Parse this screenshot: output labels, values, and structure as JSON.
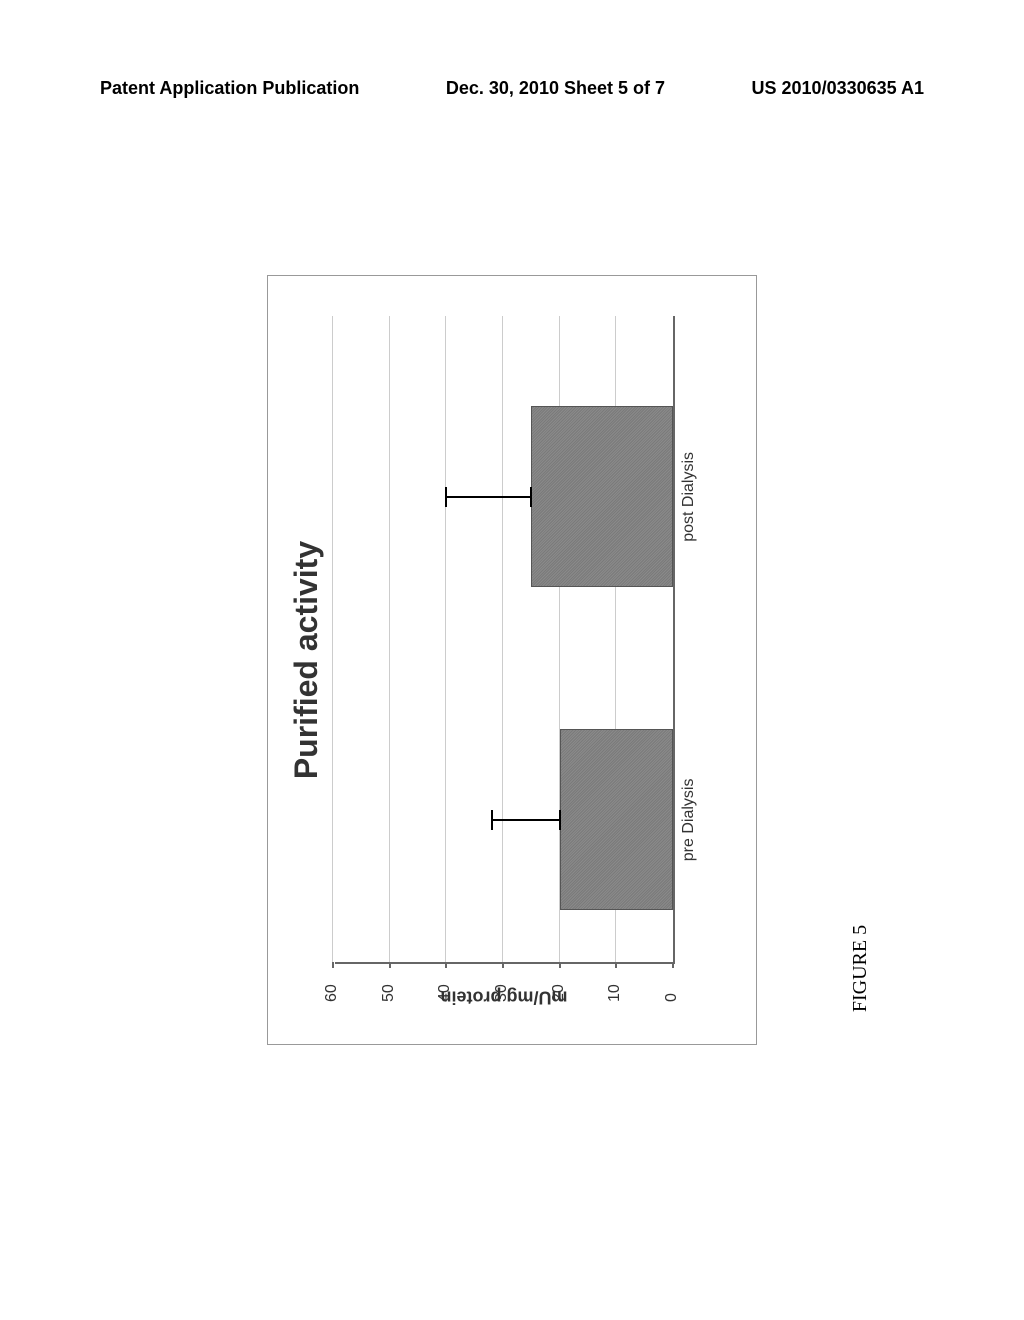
{
  "header": {
    "left": "Patent Application Publication",
    "center": "Dec. 30, 2010  Sheet 5 of 7",
    "right": "US 2010/0330635 A1"
  },
  "chart": {
    "type": "bar",
    "title": "Purified activity",
    "ylabel": "mU/mg protein",
    "ylim": [
      0,
      60
    ],
    "ytick_step": 10,
    "yticks": [
      0,
      10,
      20,
      30,
      40,
      50,
      60
    ],
    "categories": [
      "pre Dialysis",
      "post Dialysis"
    ],
    "values": [
      20,
      25
    ],
    "error_upper": [
      12,
      15
    ],
    "bar_color": "#808080",
    "bar_width_pct": 28,
    "bar_positions_pct": [
      22,
      72
    ],
    "background_color": "#ffffff",
    "grid_color": "#cccccc",
    "axis_color": "#666666",
    "title_fontsize": 32,
    "label_fontsize": 16
  },
  "figure_label": "FIGURE 5"
}
